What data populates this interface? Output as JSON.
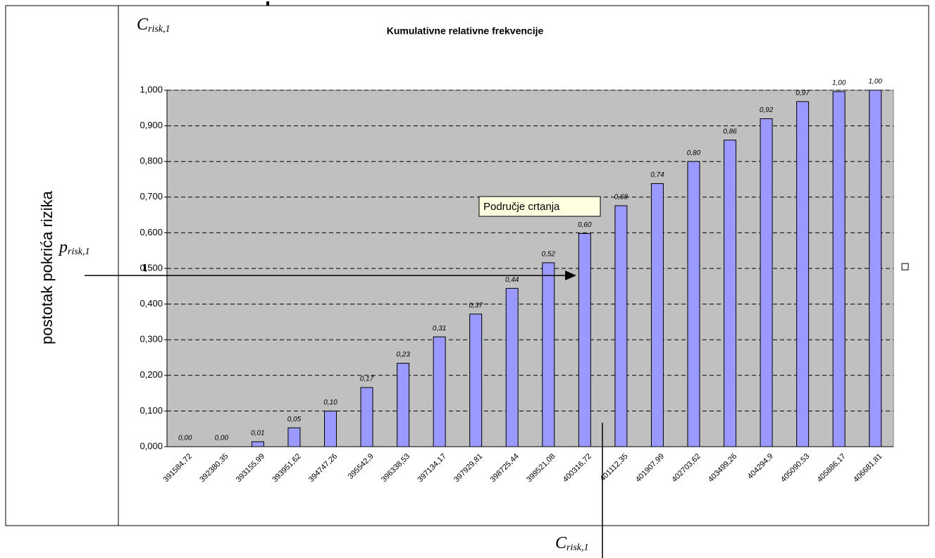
{
  "chart_data": {
    "type": "bar",
    "title": "Kumulativne relativne frekvencije",
    "y_axis_label": "postotak pokrića rizika",
    "annotations": {
      "c_top": {
        "symbol": "C",
        "subscript": "risk,1"
      },
      "p_left": {
        "symbol": "p",
        "subscript": "risk,1"
      },
      "c_bottom": {
        "symbol": "C",
        "subscript": "risk,1"
      },
      "tooltip": "Područje crtanja"
    },
    "categories": [
      "391584,72",
      "392380,35",
      "393155,99",
      "393951,62",
      "394747,26",
      "395542,9",
      "396338,53",
      "397134,17",
      "397929,81",
      "398725,44",
      "399521,08",
      "400316,72",
      "401112,35",
      "401907,99",
      "402703,62",
      "403499,26",
      "404294,9",
      "405090,53",
      "405886,17",
      "406681,81"
    ],
    "values": [
      0,
      0,
      0.014,
      0.053,
      0.1,
      0.166,
      0.234,
      0.308,
      0.372,
      0.444,
      0.516,
      0.598,
      0.676,
      0.738,
      0.8,
      0.86,
      0.92,
      0.968,
      0.996,
      1.0
    ],
    "value_labels": [
      "0,00",
      "0,00",
      "0,01",
      "0,05",
      "0,10",
      "0,17",
      "0,23",
      "0,31",
      "0,37",
      "0,44",
      "0,52",
      "0,60",
      "0,68",
      "0,74",
      "0,80",
      "0,86",
      "0,92",
      "0,97",
      "1,00",
      "1,00"
    ],
    "color": "#9999ff",
    "ylim": [
      0,
      1
    ],
    "yticks": [
      {
        "value": 0,
        "label": "0,000"
      },
      {
        "value": 0.1,
        "label": "0,100"
      },
      {
        "value": 0.2,
        "label": "0,200"
      },
      {
        "value": 0.3,
        "label": "0,300"
      },
      {
        "value": 0.4,
        "label": "0,400"
      },
      {
        "value": 0.5,
        "label": "0,500"
      },
      {
        "value": 0.6,
        "label": "0,600"
      },
      {
        "value": 0.7,
        "label": "0,700"
      },
      {
        "value": 0.8,
        "label": "0,800"
      },
      {
        "value": 0.9,
        "label": "0,900"
      },
      {
        "value": 1,
        "label": "1,000"
      }
    ],
    "grid": true
  }
}
